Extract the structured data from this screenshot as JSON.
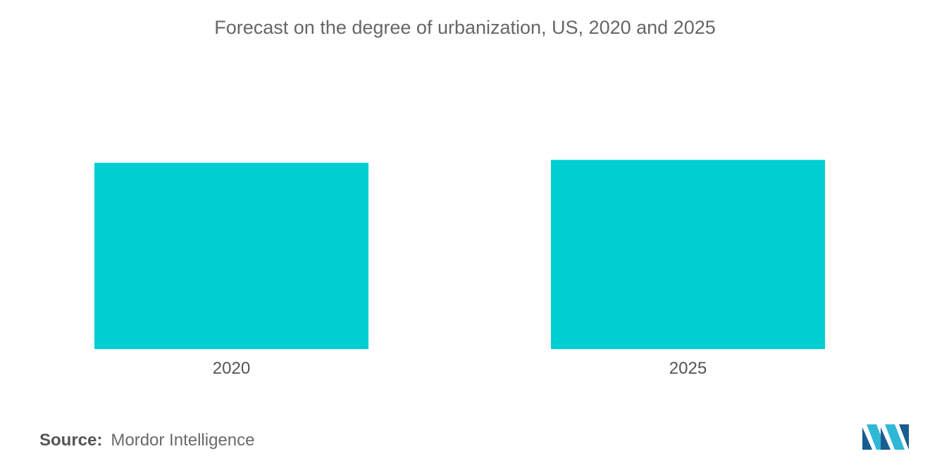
{
  "chart_data": {
    "type": "bar",
    "title": "Forecast on the degree of urbanization, US, 2020 and 2025",
    "categories": [
      "2020",
      "2025"
    ],
    "values": [
      82.7,
      84.0
    ],
    "xlabel": "",
    "ylabel": "",
    "ylim": [
      0,
      100
    ],
    "grid": false,
    "legend": "none",
    "bar_color": "#00CED1"
  },
  "source": {
    "label": "Source:",
    "value": "Mordor Intelligence"
  },
  "colors": {
    "bar": "#00CED1",
    "logo_dark": "#1a5d8f",
    "logo_light": "#2fb8d6"
  }
}
